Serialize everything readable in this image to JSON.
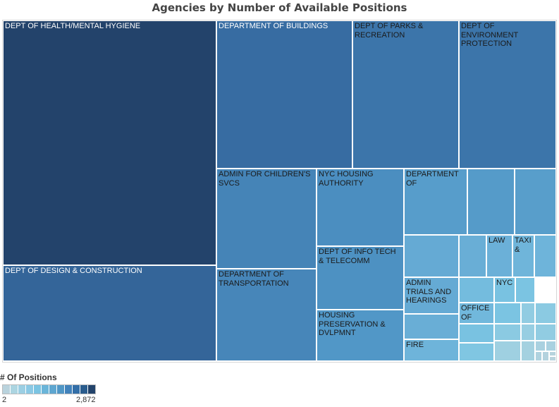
{
  "chart_data": {
    "type": "treemap",
    "title": "Agencies by Number of Available Positions",
    "color_min": "#b9d3dd",
    "color_max": "#23436b",
    "items": [
      {
        "label": "DEPT OF HEALTH/MENTAL HYGIENE",
        "value": 2872
      },
      {
        "label": "DEPT OF DESIGN & CONSTRUCTION",
        "value": 770
      },
      {
        "label": "DEPARTMENT OF BUILDINGS",
        "value": 560
      },
      {
        "label": "DEPT OF PARKS & RECREATION",
        "value": 420
      },
      {
        "label": "DEPT OF ENVIRONMENT PROTECTION",
        "value": 420
      },
      {
        "label": "ADMIN FOR CHILDREN'S SVCS",
        "value": 260
      },
      {
        "label": "DEPARTMENT OF TRANSPORTATION",
        "value": 240
      },
      {
        "label": "NYC HOUSING AUTHORITY",
        "value": 180
      },
      {
        "label": "DEPT OF INFO TECH & TELECOMM",
        "value": 160
      },
      {
        "label": "HOUSING PRESERVATION & DVLPMNT",
        "value": 130
      },
      {
        "label": "DEPARTMENT OF",
        "value": 100
      },
      {
        "label": "",
        "value": 110
      },
      {
        "label": "",
        "value": 95
      },
      {
        "label": "",
        "value": 52
      },
      {
        "label": "",
        "value": 42
      },
      {
        "label": "LAW",
        "value": 39
      },
      {
        "label": "TAXI &",
        "value": 34
      },
      {
        "label": "",
        "value": 35
      },
      {
        "label": "ADMIN TRIALS AND HEARINGS",
        "value": 52
      },
      {
        "label": "",
        "value": 42
      },
      {
        "label": "FIRE",
        "value": 35
      },
      {
        "label": "",
        "value": 27
      },
      {
        "label": "NYC",
        "value": 22
      },
      {
        "label": "",
        "value": 20
      },
      {
        "label": "OFFICE OF",
        "value": 31
      },
      {
        "label": "",
        "value": 22
      },
      {
        "label": "",
        "value": 18
      },
      {
        "label": "",
        "value": 20
      },
      {
        "label": "",
        "value": 12
      },
      {
        "label": "",
        "value": 14
      },
      {
        "label": "",
        "value": 14
      },
      {
        "label": "",
        "value": 10
      },
      {
        "label": "",
        "value": 12
      },
      {
        "label": "",
        "value": 8
      },
      {
        "label": "",
        "value": 7
      },
      {
        "label": "",
        "value": 6
      },
      {
        "label": "",
        "value": 6
      },
      {
        "label": "",
        "value": 5
      },
      {
        "label": "",
        "value": 4
      },
      {
        "label": "",
        "value": 3
      },
      {
        "label": "",
        "value": 2
      }
    ]
  },
  "legend": {
    "title": "# Of Positions",
    "min_label": "2",
    "max_label": "2,872",
    "swatch_colors": [
      "#b9d3dd",
      "#acd5e1",
      "#9ccfe3",
      "#8bc9e4",
      "#7bc4e2",
      "#6bb5d9",
      "#5ea6d0",
      "#5097c6",
      "#4182bb",
      "#336fa8",
      "#2a5c8d",
      "#23436b"
    ]
  }
}
